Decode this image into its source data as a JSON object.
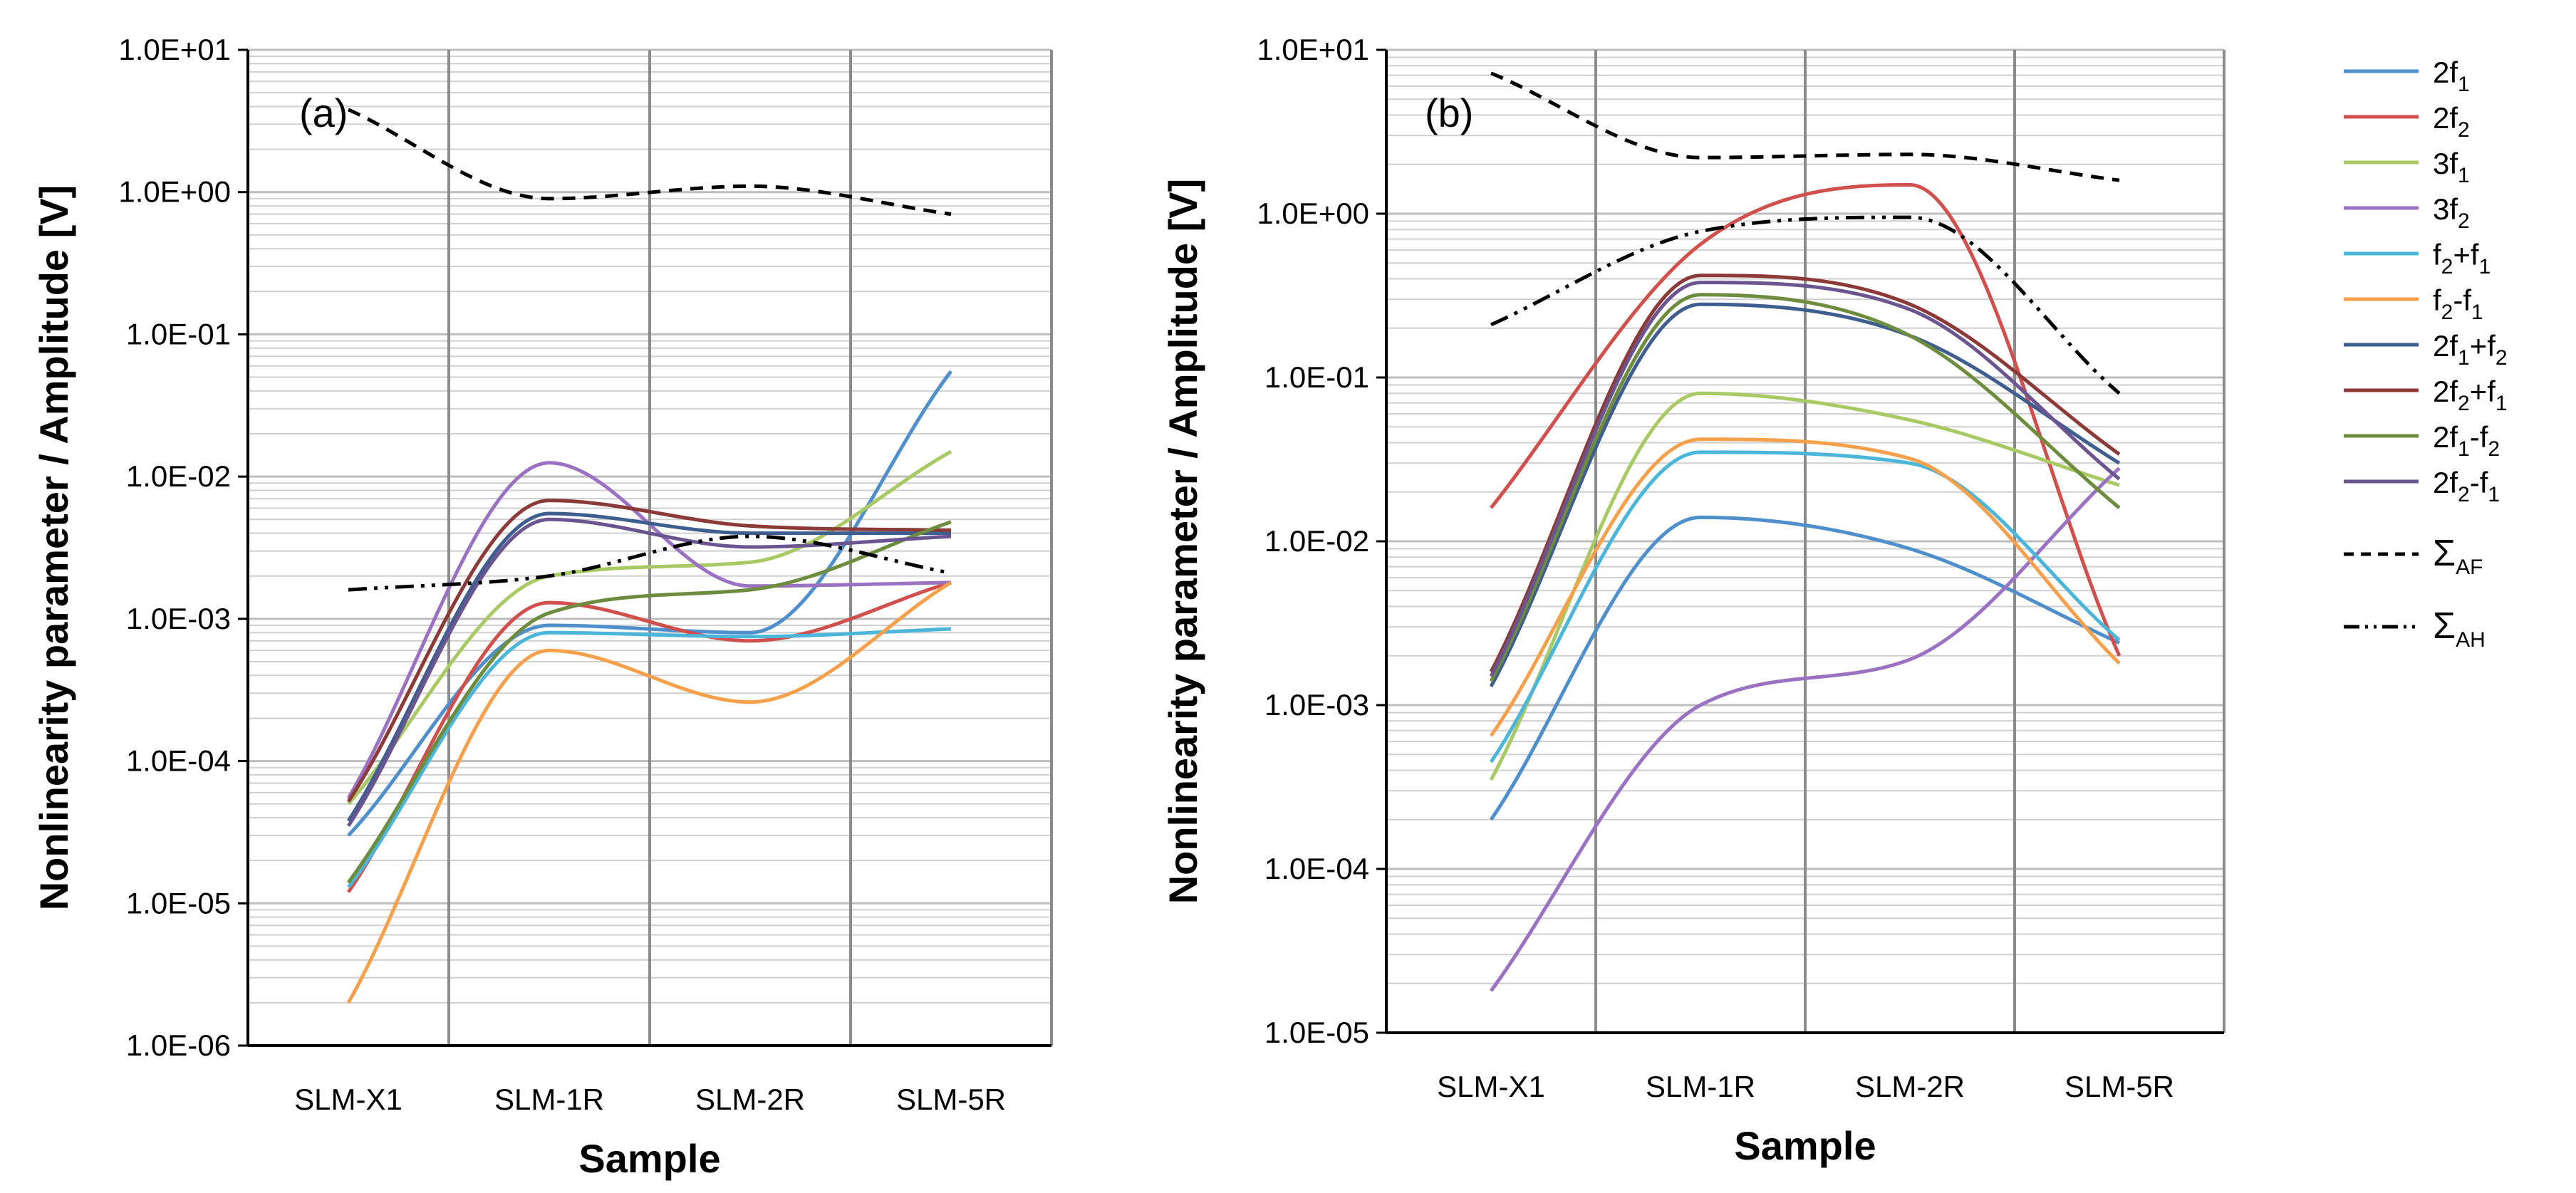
{
  "chart_data": [
    {
      "type": "line",
      "panel_label": "(a)",
      "xlabel": "Sample",
      "ylabel": "Nonlinearity parameter / Amplitude [V]",
      "yscale": "log",
      "ylim": [
        1e-06,
        10
      ],
      "ytick_labels": [
        "1.0E-06",
        "1.0E-05",
        "1.0E-04",
        "1.0E-03",
        "1.0E-02",
        "1.0E-01",
        "1.0E+00",
        "1.0E+01"
      ],
      "categories": [
        "SLM-X1",
        "SLM-1R",
        "SLM-2R",
        "SLM-5R"
      ],
      "grid": "vertical gridlines at category boundaries; horizontal lines at major and minor log ticks",
      "series": [
        {
          "name": "2f1",
          "color": "#4E8FCC",
          "dash": "solid",
          "values": [
            3e-05,
            0.0009,
            0.0008,
            0.055
          ]
        },
        {
          "name": "2f2",
          "color": "#D0504E",
          "dash": "solid",
          "values": [
            1.2e-05,
            0.0013,
            0.0007,
            0.0018
          ]
        },
        {
          "name": "3f1",
          "color": "#A9C964",
          "dash": "solid",
          "values": [
            5e-05,
            0.002,
            0.0025,
            0.015
          ]
        },
        {
          "name": "3f2",
          "color": "#9B72C2",
          "dash": "solid",
          "values": [
            5.5e-05,
            0.0125,
            0.0017,
            0.0018
          ]
        },
        {
          "name": "f2+f1",
          "color": "#4BB6D9",
          "dash": "solid",
          "values": [
            1.3e-05,
            0.0008,
            0.00075,
            0.00085
          ]
        },
        {
          "name": "f2-f1",
          "color": "#F6A04C",
          "dash": "solid",
          "values": [
            2e-06,
            0.0006,
            0.00026,
            0.0018
          ]
        },
        {
          "name": "2f1+f2",
          "color": "#3D5E8F",
          "dash": "solid",
          "values": [
            3.8e-05,
            0.0055,
            0.004,
            0.004
          ]
        },
        {
          "name": "2f2+f1",
          "color": "#8B3A38",
          "dash": "solid",
          "values": [
            5.2e-05,
            0.0068,
            0.0045,
            0.0042
          ]
        },
        {
          "name": "2f1-f2",
          "color": "#6E8C3D",
          "dash": "solid",
          "values": [
            1.4e-05,
            0.0011,
            0.0016,
            0.0048
          ]
        },
        {
          "name": "2f2-f1",
          "color": "#6A5590",
          "dash": "solid",
          "values": [
            3.5e-05,
            0.005,
            0.0032,
            0.0038
          ]
        },
        {
          "name": "ΣAF",
          "color": "#000000",
          "dash": "dashed",
          "values": [
            3.8,
            0.9,
            1.1,
            0.7
          ]
        },
        {
          "name": "ΣAH",
          "color": "#000000",
          "dash": "dashdotdot",
          "values": [
            0.0016,
            0.002,
            0.0038,
            0.0021
          ]
        }
      ]
    },
    {
      "type": "line",
      "panel_label": "(b)",
      "xlabel": "Sample",
      "ylabel": "Nonlinearity parameter / Amplitude [V]",
      "yscale": "log",
      "ylim": [
        1e-05,
        10
      ],
      "ytick_labels": [
        "1.0E-05",
        "1.0E-04",
        "1.0E-03",
        "1.0E-02",
        "1.0E-01",
        "1.0E+00",
        "1.0E+01"
      ],
      "categories": [
        "SLM-X1",
        "SLM-1R",
        "SLM-2R",
        "SLM-5R"
      ],
      "grid": "vertical gridlines at category boundaries; horizontal lines at major and minor log ticks",
      "series": [
        {
          "name": "2f1",
          "color": "#4E8FCC",
          "dash": "solid",
          "values": [
            0.0002,
            0.014,
            0.009,
            0.0024
          ]
        },
        {
          "name": "2f2",
          "color": "#D0504E",
          "dash": "solid",
          "values": [
            0.016,
            0.65,
            1.5,
            0.002
          ]
        },
        {
          "name": "3f1",
          "color": "#A9C964",
          "dash": "solid",
          "values": [
            0.00035,
            0.08,
            0.055,
            0.022
          ]
        },
        {
          "name": "3f2",
          "color": "#9B72C2",
          "dash": "solid",
          "values": [
            1.8e-05,
            0.001,
            0.0019,
            0.028
          ]
        },
        {
          "name": "f2+f1",
          "color": "#4BB6D9",
          "dash": "solid",
          "values": [
            0.00045,
            0.035,
            0.03,
            0.0025
          ]
        },
        {
          "name": "f2-f1",
          "color": "#F6A04C",
          "dash": "solid",
          "values": [
            0.00065,
            0.042,
            0.032,
            0.0018
          ]
        },
        {
          "name": "2f1+f2",
          "color": "#3D5E8F",
          "dash": "solid",
          "values": [
            0.0013,
            0.28,
            0.18,
            0.03
          ]
        },
        {
          "name": "2f2+f1",
          "color": "#8B3A38",
          "dash": "solid",
          "values": [
            0.0016,
            0.42,
            0.28,
            0.034
          ]
        },
        {
          "name": "2f1-f2",
          "color": "#6E8C3D",
          "dash": "solid",
          "values": [
            0.0014,
            0.32,
            0.18,
            0.016
          ]
        },
        {
          "name": "2f2-f1",
          "color": "#6A5590",
          "dash": "solid",
          "values": [
            0.0015,
            0.38,
            0.26,
            0.024
          ]
        },
        {
          "name": "ΣAF",
          "color": "#000000",
          "dash": "dashed",
          "values": [
            7.2,
            2.2,
            2.3,
            1.6
          ]
        },
        {
          "name": "ΣAH",
          "color": "#000000",
          "dash": "dashdotdot",
          "values": [
            0.21,
            0.78,
            0.95,
            0.08
          ]
        }
      ]
    }
  ],
  "legend": {
    "placement": "right",
    "items": [
      {
        "base": "2f",
        "sub": "1",
        "rest": "",
        "color": "#4E8FCC",
        "dash": "solid"
      },
      {
        "base": "2f",
        "sub": "2",
        "rest": "",
        "color": "#D0504E",
        "dash": "solid"
      },
      {
        "base": "3f",
        "sub": "1",
        "rest": "",
        "color": "#A9C964",
        "dash": "solid"
      },
      {
        "base": "3f",
        "sub": "2",
        "rest": "",
        "color": "#9B72C2",
        "dash": "solid"
      },
      {
        "base": "f",
        "sub": "2",
        "rest": "+f",
        "sub2": "1",
        "color": "#4BB6D9",
        "dash": "solid"
      },
      {
        "base": "f",
        "sub": "2",
        "rest": "-f",
        "sub2": "1",
        "color": "#F6A04C",
        "dash": "solid"
      },
      {
        "base": "2f",
        "sub": "1",
        "rest": "+f",
        "sub2": "2",
        "color": "#3D5E8F",
        "dash": "solid"
      },
      {
        "base": "2f",
        "sub": "2",
        "rest": "+f",
        "sub2": "1",
        "color": "#8B3A38",
        "dash": "solid"
      },
      {
        "base": "2f",
        "sub": "1",
        "rest": "-f",
        "sub2": "2",
        "color": "#6E8C3D",
        "dash": "solid"
      },
      {
        "base": "2f",
        "sub": "2",
        "rest": "-f",
        "sub2": "1",
        "color": "#6A5590",
        "dash": "solid"
      },
      {
        "base": "Σ",
        "sub": "AF",
        "rest": "",
        "color": "#000000",
        "dash": "dashed"
      },
      {
        "base": "Σ",
        "sub": "AH",
        "rest": "",
        "color": "#000000",
        "dash": "dashdotdot"
      }
    ]
  }
}
